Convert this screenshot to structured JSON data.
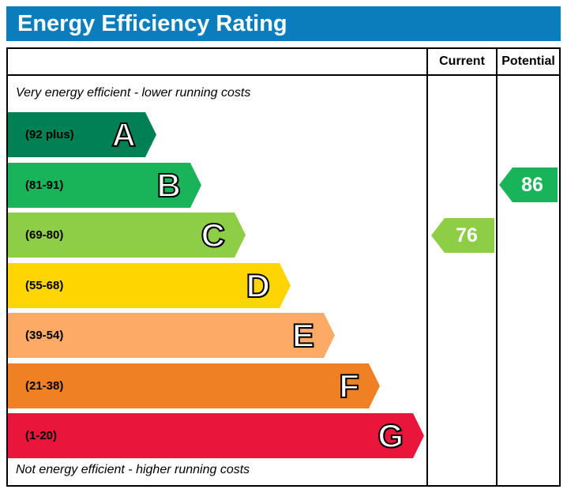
{
  "title": "Energy Efficiency Rating",
  "columns": {
    "current": "Current",
    "potential": "Potential"
  },
  "notes": {
    "top": "Very energy efficient - lower running costs",
    "bottom": "Not energy efficient - higher running costs"
  },
  "bands": [
    {
      "letter": "A",
      "range": "(92 plus)",
      "color": "#008054"
    },
    {
      "letter": "B",
      "range": "(81-91)",
      "color": "#19b459"
    },
    {
      "letter": "C",
      "range": "(69-80)",
      "color": "#8dce46"
    },
    {
      "letter": "D",
      "range": "(55-68)",
      "color": "#ffd500"
    },
    {
      "letter": "E",
      "range": "(39-54)",
      "color": "#fcaa65"
    },
    {
      "letter": "F",
      "range": "(21-38)",
      "color": "#ef8023"
    },
    {
      "letter": "G",
      "range": "(1-20)",
      "color": "#e9153b"
    }
  ],
  "current": {
    "value": "76",
    "band": "C",
    "color": "#8dce46"
  },
  "potential": {
    "value": "86",
    "band": "B",
    "color": "#19b459"
  },
  "chart_data": {
    "type": "bar",
    "title": "Energy Efficiency Rating",
    "categories": [
      "A",
      "B",
      "C",
      "D",
      "E",
      "F",
      "G"
    ],
    "ranges": [
      "92 plus",
      "81-91",
      "69-80",
      "55-68",
      "39-54",
      "21-38",
      "1-20"
    ],
    "colors": [
      "#008054",
      "#19b459",
      "#8dce46",
      "#ffd500",
      "#fcaa65",
      "#ef8023",
      "#e9153b"
    ],
    "columns": [
      "Current",
      "Potential"
    ],
    "current_rating": 76,
    "current_band": "C",
    "potential_rating": 86,
    "potential_band": "B",
    "annotations": [
      "Very energy efficient - lower running costs",
      "Not energy efficient - higher running costs"
    ],
    "legend_position": "none",
    "grid": false
  }
}
